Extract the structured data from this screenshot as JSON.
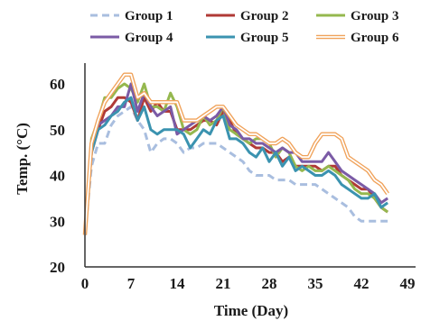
{
  "chart_data": {
    "type": "line",
    "title": "",
    "xlabel": "Time (Day)",
    "ylabel": "Temp. (°C)",
    "xlim": [
      0,
      49
    ],
    "ylim": [
      20,
      65
    ],
    "xticks": [
      "0",
      "7",
      "14",
      "21",
      "28",
      "35",
      "42",
      "49"
    ],
    "yticks": [
      "20",
      "30",
      "40",
      "50",
      "60"
    ],
    "grid": false,
    "legend_position": "top",
    "series": [
      {
        "name": "Group 1",
        "color": "#a9bedf",
        "style": "dashed",
        "x": [
          0,
          1,
          2,
          3,
          4,
          5,
          6,
          7,
          8,
          9,
          10,
          11,
          12,
          13,
          14,
          15,
          16,
          17,
          18,
          19,
          20,
          21,
          22,
          23,
          24,
          25,
          26,
          27,
          28,
          29,
          30,
          31,
          32,
          33,
          34,
          35,
          36,
          37,
          38,
          39,
          40,
          41,
          42,
          43,
          44,
          45,
          46
        ],
        "y": [
          27,
          42,
          47,
          47,
          51,
          53,
          54,
          55,
          52,
          50,
          45,
          47,
          48,
          48,
          47,
          45,
          46,
          46,
          47,
          47,
          47,
          46,
          45,
          44,
          43,
          41,
          40,
          40,
          40,
          39,
          39,
          39,
          38,
          38,
          38,
          38,
          37,
          36,
          35,
          34,
          33,
          31,
          30,
          30,
          30,
          30,
          30
        ]
      },
      {
        "name": "Group 2",
        "color": "#b03a36",
        "style": "solid",
        "x": [
          0,
          1,
          2,
          3,
          4,
          5,
          6,
          7,
          8,
          9,
          10,
          11,
          12,
          13,
          14,
          15,
          16,
          17,
          18,
          19,
          20,
          21,
          22,
          23,
          24,
          25,
          26,
          27,
          28,
          29,
          30,
          31,
          32,
          33,
          34,
          35,
          36,
          37,
          38,
          39,
          40,
          41,
          42,
          43,
          44,
          45,
          46
        ],
        "y": [
          27,
          45,
          50,
          54,
          55,
          57,
          57,
          56,
          52,
          57,
          54,
          56,
          54,
          54,
          50,
          50,
          50,
          51,
          52,
          52,
          51,
          54,
          52,
          49,
          48,
          47,
          46,
          46,
          45,
          45,
          43,
          44,
          42,
          42,
          42,
          42,
          41,
          42,
          42,
          40,
          39,
          38,
          37,
          37,
          35,
          33,
          32
        ]
      },
      {
        "name": "Group 3",
        "color": "#95b84f",
        "style": "solid",
        "x": [
          0,
          1,
          2,
          3,
          4,
          5,
          6,
          7,
          8,
          9,
          10,
          11,
          12,
          13,
          14,
          15,
          16,
          17,
          18,
          19,
          20,
          21,
          22,
          23,
          24,
          25,
          26,
          27,
          28,
          29,
          30,
          31,
          32,
          33,
          34,
          35,
          36,
          37,
          38,
          39,
          40,
          41,
          42,
          43,
          44,
          45,
          46
        ],
        "y": [
          27,
          48,
          52,
          57,
          57,
          59,
          60,
          59,
          56,
          60,
          55,
          55,
          54,
          58,
          55,
          50,
          49,
          50,
          53,
          51,
          52,
          55,
          50,
          49,
          48,
          47,
          48,
          48,
          47,
          44,
          46,
          45,
          42,
          41,
          42,
          41,
          41,
          42,
          41,
          40,
          39,
          37,
          36,
          36,
          35,
          33,
          32
        ]
      },
      {
        "name": "Group 4",
        "color": "#7b5ba6",
        "style": "solid",
        "x": [
          0,
          1,
          2,
          3,
          4,
          5,
          6,
          7,
          8,
          9,
          10,
          11,
          12,
          13,
          14,
          15,
          16,
          17,
          18,
          19,
          20,
          21,
          22,
          23,
          24,
          25,
          26,
          27,
          28,
          29,
          30,
          31,
          32,
          33,
          34,
          35,
          36,
          37,
          38,
          39,
          40,
          41,
          42,
          43,
          44,
          45,
          46
        ],
        "y": [
          27,
          46,
          51,
          52,
          53,
          55,
          55,
          60,
          54,
          58,
          55,
          53,
          54,
          55,
          49,
          50,
          51,
          52,
          53,
          52,
          53,
          55,
          51,
          50,
          48,
          48,
          47,
          47,
          46,
          45,
          46,
          45,
          45,
          43,
          43,
          43,
          43,
          45,
          43,
          41,
          40,
          39,
          38,
          37,
          36,
          34,
          35
        ]
      },
      {
        "name": "Group 5",
        "color": "#3b93b0",
        "style": "solid",
        "x": [
          0,
          1,
          2,
          3,
          4,
          5,
          6,
          7,
          8,
          9,
          10,
          11,
          12,
          13,
          14,
          15,
          16,
          17,
          18,
          19,
          20,
          21,
          22,
          23,
          24,
          25,
          26,
          27,
          28,
          29,
          30,
          31,
          32,
          33,
          34,
          35,
          36,
          37,
          38,
          39,
          40,
          41,
          42,
          43,
          44,
          45,
          46
        ],
        "y": [
          27,
          45,
          50,
          51,
          53,
          54,
          56,
          57,
          52,
          55,
          50,
          49,
          50,
          50,
          50,
          49,
          46,
          48,
          50,
          49,
          52,
          53,
          48,
          48,
          47,
          45,
          44,
          46,
          43,
          45,
          42,
          44,
          41,
          42,
          41,
          40,
          40,
          41,
          40,
          38,
          37,
          36,
          35,
          35,
          36,
          33,
          34
        ]
      },
      {
        "name": "Group 6",
        "color": "#f0a25a",
        "style": "double",
        "x": [
          0,
          1,
          2,
          3,
          4,
          5,
          6,
          7,
          8,
          9,
          10,
          11,
          12,
          13,
          14,
          15,
          16,
          17,
          18,
          19,
          20,
          21,
          22,
          23,
          24,
          25,
          26,
          27,
          28,
          29,
          30,
          31,
          32,
          33,
          34,
          35,
          36,
          37,
          38,
          39,
          40,
          41,
          42,
          43,
          44,
          45,
          46
        ],
        "y": [
          27,
          47,
          52,
          56,
          58,
          60,
          62,
          62,
          57,
          58,
          56,
          56,
          56,
          56,
          56,
          52,
          52,
          52,
          53,
          54,
          55,
          55,
          53,
          51,
          50,
          49,
          49,
          48,
          47,
          47,
          48,
          47,
          45,
          44,
          44,
          47,
          49,
          49,
          49,
          48,
          44,
          43,
          42,
          41,
          39,
          38,
          36
        ]
      }
    ]
  }
}
